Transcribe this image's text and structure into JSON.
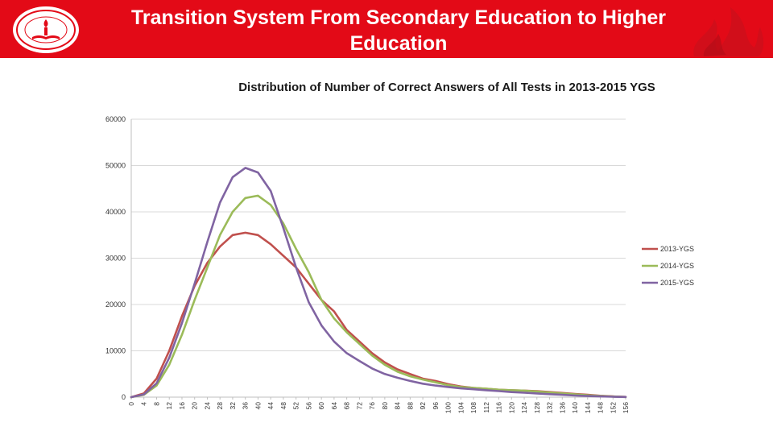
{
  "header": {
    "title": "Transition System From Secondary Education to Higher Education",
    "background": "#e30a17",
    "logo_text": "T.C. MİLLİ EĞİTİM BAKANLIĞI"
  },
  "chart_data": {
    "type": "line",
    "title": "Distribution of Number of Correct Answers of All Tests in 2013-2015 YGS",
    "xlabel": "",
    "ylabel": "",
    "xlim": [
      0,
      156
    ],
    "ylim": [
      0,
      60000
    ],
    "y_ticks": [
      0,
      10000,
      20000,
      30000,
      40000,
      50000,
      60000
    ],
    "y_tick_labels": [
      "0",
      "10000",
      "20000",
      "30000",
      "40000",
      "50000",
      "60000"
    ],
    "x_ticks": [
      0,
      4,
      8,
      12,
      16,
      20,
      24,
      28,
      32,
      36,
      40,
      44,
      48,
      52,
      56,
      60,
      64,
      68,
      72,
      76,
      80,
      84,
      88,
      92,
      96,
      100,
      104,
      108,
      112,
      116,
      120,
      124,
      128,
      132,
      136,
      140,
      144,
      148,
      152,
      156
    ],
    "x_tick_labels": [
      "0",
      "4",
      "8",
      "12",
      "16",
      "20",
      "24",
      "28",
      "32",
      "36",
      "40",
      "44",
      "48",
      "52",
      "56",
      "60",
      "64",
      "68",
      "72",
      "76",
      "80",
      "84",
      "88",
      "92",
      "96",
      "100",
      "104",
      "108",
      "112",
      "116",
      "120",
      "124",
      "128",
      "132",
      "136",
      "140",
      "144",
      "148",
      "152",
      "156"
    ],
    "grid": "horizontal",
    "legend": "right",
    "series": [
      {
        "name": "2013-YGS",
        "color": "#c0504d",
        "x": [
          0,
          4,
          8,
          12,
          16,
          20,
          24,
          28,
          32,
          36,
          40,
          44,
          48,
          52,
          56,
          60,
          64,
          68,
          72,
          76,
          80,
          84,
          88,
          92,
          96,
          100,
          104,
          108,
          112,
          116,
          120,
          124,
          128,
          132,
          136,
          140,
          144,
          148,
          152,
          156
        ],
        "values": [
          0,
          800,
          4000,
          10000,
          17500,
          24000,
          29000,
          32500,
          35000,
          35500,
          35000,
          33000,
          30500,
          28000,
          24500,
          21000,
          18500,
          14500,
          12000,
          9500,
          7500,
          6000,
          5000,
          4000,
          3500,
          2800,
          2300,
          2000,
          1800,
          1600,
          1500,
          1400,
          1300,
          1100,
          900,
          700,
          500,
          300,
          150,
          50
        ]
      },
      {
        "name": "2014-YGS",
        "color": "#9bbb59",
        "x": [
          0,
          4,
          8,
          12,
          16,
          20,
          24,
          28,
          32,
          36,
          40,
          44,
          48,
          52,
          56,
          60,
          64,
          68,
          72,
          76,
          80,
          84,
          88,
          92,
          96,
          100,
          104,
          108,
          112,
          116,
          120,
          124,
          128,
          132,
          136,
          140,
          144,
          148,
          152,
          156
        ],
        "values": [
          0,
          500,
          2500,
          7000,
          13500,
          21000,
          28000,
          35000,
          40000,
          43000,
          43500,
          41500,
          37500,
          32000,
          27000,
          21000,
          17000,
          14000,
          11500,
          9000,
          7000,
          5500,
          4500,
          3800,
          3200,
          2600,
          2200,
          2000,
          1800,
          1600,
          1500,
          1400,
          1200,
          1000,
          800,
          600,
          400,
          250,
          120,
          40
        ]
      },
      {
        "name": "2015-YGS",
        "color": "#8064a2",
        "x": [
          0,
          4,
          8,
          12,
          16,
          20,
          24,
          28,
          32,
          36,
          40,
          44,
          48,
          52,
          56,
          60,
          64,
          68,
          72,
          76,
          80,
          84,
          88,
          92,
          96,
          100,
          104,
          108,
          112,
          116,
          120,
          124,
          128,
          132,
          136,
          140,
          144,
          148,
          152,
          156
        ],
        "values": [
          0,
          600,
          3000,
          8500,
          16000,
          24500,
          33500,
          42000,
          47500,
          49500,
          48500,
          44500,
          36500,
          28000,
          20500,
          15500,
          12000,
          9500,
          7800,
          6200,
          5000,
          4200,
          3500,
          2900,
          2500,
          2200,
          1900,
          1700,
          1500,
          1300,
          1100,
          950,
          800,
          650,
          500,
          350,
          250,
          150,
          80,
          30
        ]
      }
    ]
  }
}
